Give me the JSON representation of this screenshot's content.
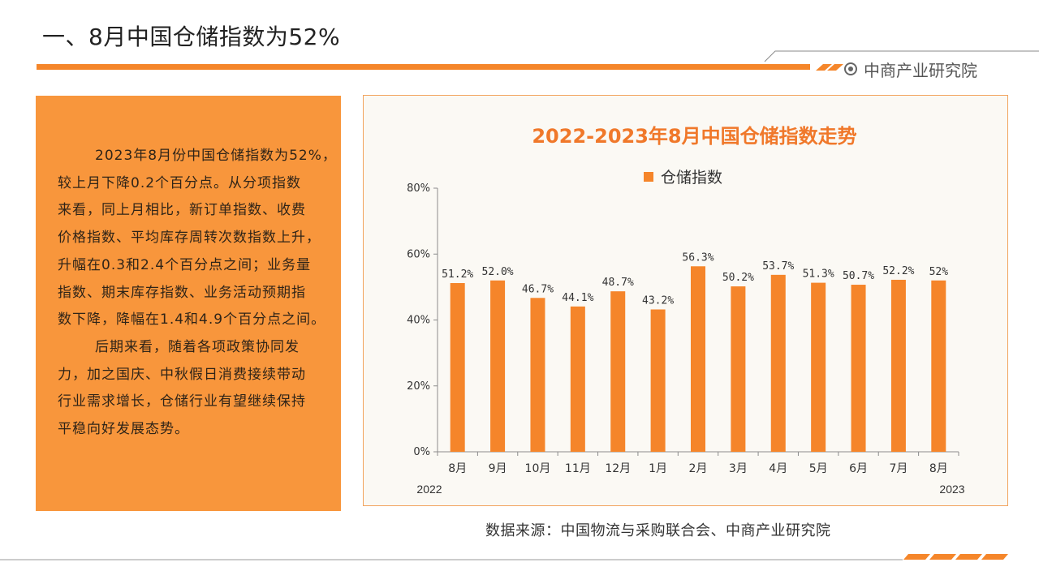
{
  "header": {
    "title": "一、8月中国仓储指数为52%",
    "logo_icon": "target-circle-icon",
    "logo_text": "中商产业研究院"
  },
  "summary": {
    "lines": [
      "2023年8月份中国仓储指数为52%，",
      "较上月下降0.2个百分点。从分项指数",
      "来看，同上月相比，新订单指数、收费",
      "价格指数、平均库存周转次数指数上升，",
      "升幅在0.3和2.4个百分点之间；业务量",
      "指数、期末库存指数、业务活动预期指",
      "数下降，降幅在1.4和4.9个百分点之间。",
      "后期来看，随着各项政策协同发",
      "力，加之国庆、中秋假日消费接续带动",
      "行业需求增长，仓储行业有望继续保持",
      "平稳向好发展态势。"
    ]
  },
  "chart_data": {
    "type": "bar",
    "title": "2022-2023年8月中国仓储指数走势",
    "legend_position": "top",
    "categories": [
      "8月",
      "9月",
      "10月",
      "11月",
      "12月",
      "1月",
      "2月",
      "3月",
      "4月",
      "5月",
      "6月",
      "7月",
      "8月"
    ],
    "year_labels": [
      "2022",
      "2023"
    ],
    "series": [
      {
        "name": "仓储指数",
        "values": [
          51.2,
          52.0,
          46.7,
          44.1,
          48.7,
          43.2,
          56.3,
          50.2,
          53.7,
          51.3,
          50.7,
          52.2,
          52
        ],
        "labels": [
          "51.2%",
          "52.0%",
          "46.7%",
          "44.1%",
          "48.7%",
          "43.2%",
          "56.3%",
          "50.2%",
          "53.7%",
          "51.3%",
          "50.7%",
          "52.2%",
          "52%"
        ]
      }
    ],
    "ylim": [
      0,
      80
    ],
    "yticks": [
      0,
      20,
      40,
      60,
      80
    ],
    "yticklabels": [
      "0%",
      "20%",
      "40%",
      "60%",
      "80%"
    ],
    "grid": false
  },
  "source": "数据来源：中国物流与采购联合会、中商产业研究院",
  "colors": {
    "accent": "#F5862A",
    "panel": "#F8963C",
    "bar": "#F5852A",
    "chart_title": "#F0782A"
  }
}
